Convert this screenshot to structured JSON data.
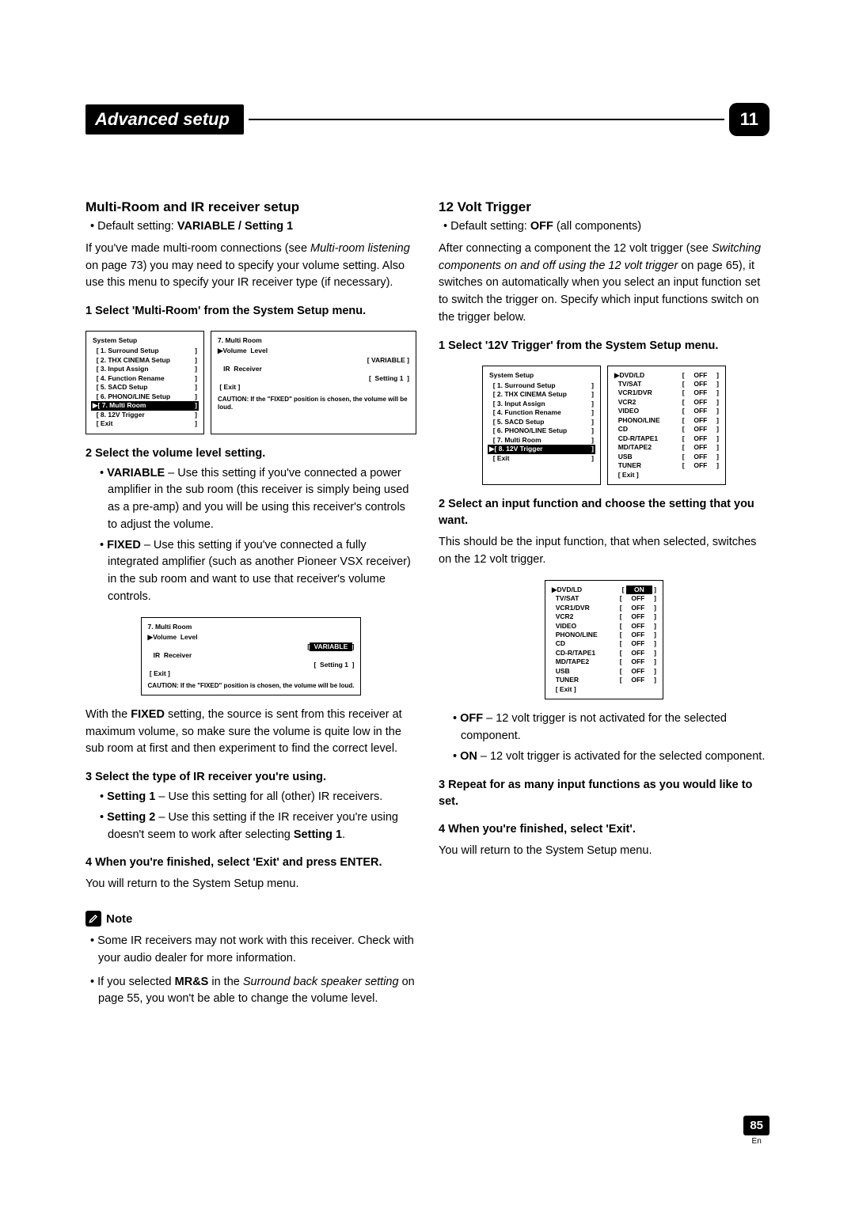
{
  "header": {
    "title": "Advanced setup",
    "chapter": "11"
  },
  "footer": {
    "page": "85",
    "lang": "En"
  },
  "left": {
    "h1": "Multi-Room and IR receiver setup",
    "default": "• Default setting: ",
    "default_bold": "VARIABLE / Setting 1",
    "p1a": "If you've made multi-room connections (see ",
    "p1b": "Multi-room listening",
    "p1c": " on page 73) you may need to specify your volume setting. Also use this menu to specify your IR receiver type (if necessary).",
    "s1": "1    Select 'Multi-Room' from the System Setup menu.",
    "s2": "2    Select the volume level setting.",
    "s2_b1a": "• ",
    "s2_b1b": "VARIABLE",
    "s2_b1c": " – Use this setting if you've connected a power amplifier in the sub room (this receiver is simply being used as a pre-amp) and you will be using this receiver's controls to adjust the volume.",
    "s2_b2a": "• ",
    "s2_b2b": "FIXED",
    "s2_b2c": " – Use this setting if you've connected a fully integrated amplifier (such as another Pioneer VSX receiver) in the sub room and want to use that receiver's volume controls.",
    "p2a": "With the ",
    "p2b": "FIXED",
    "p2c": " setting, the source is sent from this receiver at maximum volume, so make sure the volume is quite low in the sub room at first and then experiment to find the correct level.",
    "s3": "3    Select the type of IR receiver you're using.",
    "s3_b1a": "• ",
    "s3_b1b": "Setting 1",
    "s3_b1c": " – Use this setting for all (other) IR receivers.",
    "s3_b2a": "• ",
    "s3_b2b": "Setting 2",
    "s3_b2c": " – Use this setting if the IR receiver you're using doesn't seem to work after selecting ",
    "s3_b2d": "Setting 1",
    "s3_b2e": ".",
    "s4": "4    When you're finished, select 'Exit' and press ENTER.",
    "s4_p": "You will return to the System Setup menu.",
    "note_label": "Note",
    "n1": "• Some IR receivers may not work with this receiver. Check with your audio dealer for more information.",
    "n2a": "• If you selected ",
    "n2b": "MR&S",
    "n2c": " in the ",
    "n2d": "Surround back speaker setting",
    "n2e": " on page 55, you won't be able to change the volume level.",
    "menu1": {
      "title": "System Setup",
      "items": [
        "[ 1. Surround Setup",
        "[ 2. THX CINEMA Setup",
        "[ 3. Input Assign",
        "[ 4. Function Rename",
        "[ 5. SACD Setup",
        "[ 6. PHONO/LINE Setup"
      ],
      "sel": "[ 7. Multi Room",
      "after": [
        "[ 8. 12V Trigger",
        "[ Exit"
      ]
    },
    "menu2": {
      "title": "7. Multi  Room",
      "r1a": "▶Volume  Level",
      "r1b": "[ VARIABLE ]",
      "r2a": "   IR  Receiver",
      "r2b": "[  Setting 1  ]",
      "r3": " [ Exit ]",
      "caution": "CAUTION:  If  the  \"FIXED\" position  is  chosen,  the volume  will  be  loud."
    },
    "menu3": {
      "title": "7. Multi  Room",
      "r1a": "▶Volume  Level",
      "r1b": " VARIABLE ",
      "r2a": "   IR  Receiver",
      "r2b": "[  Setting 1  ]",
      "r3": " [ Exit ]",
      "caution": "CAUTION:  If  the  \"FIXED\" position  is  chosen,  the volume  will  be  loud."
    }
  },
  "right": {
    "h1": "12 Volt Trigger",
    "default": "• Default setting: ",
    "default_bold": "OFF",
    "default_after": " (all components)",
    "p1a": "After connecting a component the 12 volt trigger (see ",
    "p1b": "Switching components on and off using the 12 volt trigger",
    "p1c": " on page 65), it switches on automatically when you select an input function set to switch the trigger on. Specify which input functions switch on the trigger below.",
    "s1": "1    Select '12V Trigger' from the System Setup menu.",
    "s2": "2    Select an input function and choose the setting that you want.",
    "s2_p": "This should be the input function, that when selected, switches on the 12 volt trigger.",
    "b1a": "• ",
    "b1b": "OFF",
    "b1c": " – 12 volt trigger is not activated for the selected component.",
    "b2a": "• ",
    "b2b": "ON",
    "b2c": " – 12 volt trigger is activated for the selected component.",
    "s3": "3    Repeat for as many input functions as you would like to set.",
    "s4": "4    When you're finished, select 'Exit'.",
    "s4_p": "You will return to the System Setup menu.",
    "menu1": {
      "title": "System Setup",
      "items": [
        "[ 1. Surround Setup",
        "[ 2. THX CINEMA Setup",
        "[ 3. Input Assign",
        "[ 4. Function Rename",
        "[ 5. SACD Setup",
        "[ 6. PHONO/LINE Setup",
        "[ 7. Multi Room"
      ],
      "sel": "[ 8. 12V Trigger",
      "after": [
        "[ Exit"
      ]
    },
    "menu2": {
      "rows": [
        [
          "▶DVD/LD",
          "OFF"
        ],
        [
          "  TV/SAT",
          "OFF"
        ],
        [
          "  VCR1/DVR",
          "OFF"
        ],
        [
          "  VCR2",
          "OFF"
        ],
        [
          "  VIDEO",
          "OFF"
        ],
        [
          "  PHONO/LINE",
          "OFF"
        ],
        [
          "  CD",
          "OFF"
        ],
        [
          "  CD-R/TAPE1",
          "OFF"
        ],
        [
          "  MD/TAPE2",
          "OFF"
        ],
        [
          "  USB",
          "OFF"
        ],
        [
          "  TUNER",
          "OFF"
        ]
      ],
      "exit": "  [ Exit ]"
    },
    "menu3": {
      "rows": [
        [
          "▶DVD/LD",
          "ON",
          true
        ],
        [
          "  TV/SAT",
          "OFF",
          false
        ],
        [
          "  VCR1/DVR",
          "OFF",
          false
        ],
        [
          "  VCR2",
          "OFF",
          false
        ],
        [
          "  VIDEO",
          "OFF",
          false
        ],
        [
          "  PHONO/LINE",
          "OFF",
          false
        ],
        [
          "  CD",
          "OFF",
          false
        ],
        [
          "  CD-R/TAPE1",
          "OFF",
          false
        ],
        [
          "  MD/TAPE2",
          "OFF",
          false
        ],
        [
          "  USB",
          "OFF",
          false
        ],
        [
          "  TUNER",
          "OFF",
          false
        ]
      ],
      "exit": "  [ Exit ]"
    }
  }
}
